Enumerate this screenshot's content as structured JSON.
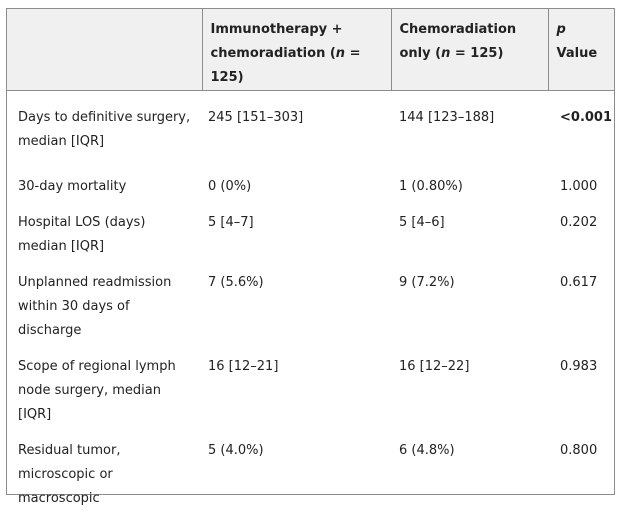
{
  "table": {
    "headers": {
      "col1": "",
      "col2_line1": "Immunotherapy +",
      "col2_line2_pre": "chemoradiation (",
      "col2_line2_n": "n",
      "col2_line2_post": " = 125)",
      "col3_line1": "Chemoradiation",
      "col3_line2_pre": "only (",
      "col3_line2_n": "n",
      "col3_line2_post": " = 125)",
      "col4_p": "p",
      "col4_rest": " Value"
    },
    "rows": [
      {
        "label": "Days to definitive surgery, median [IQR]",
        "immuno": "245 [151–303]",
        "chemo": "144 [123–188]",
        "p": "<0.001",
        "p_bold": true
      },
      {
        "label": "30-day mortality",
        "immuno": "0 (0%)",
        "chemo": "1 (0.80%)",
        "p": "1.000"
      },
      {
        "label": "Hospital LOS (days) median [IQR]",
        "immuno": "5 [4–7]",
        "chemo": "5 [4–6]",
        "p": "0.202"
      },
      {
        "label": "Unplanned readmission within 30 days of discharge",
        "immuno": "7 (5.6%)",
        "chemo": "9 (7.2%)",
        "p": "0.617"
      },
      {
        "label": "Scope of regional lymph node surgery, median [IQR]",
        "immuno": "16 [12–21]",
        "chemo": "16 [12–22]",
        "p": "0.983"
      },
      {
        "label": "Residual tumor, microscopic or macroscopic",
        "immuno": "5 (4.0%)",
        "chemo": "6 (4.8%)",
        "p": "0.800"
      }
    ]
  }
}
